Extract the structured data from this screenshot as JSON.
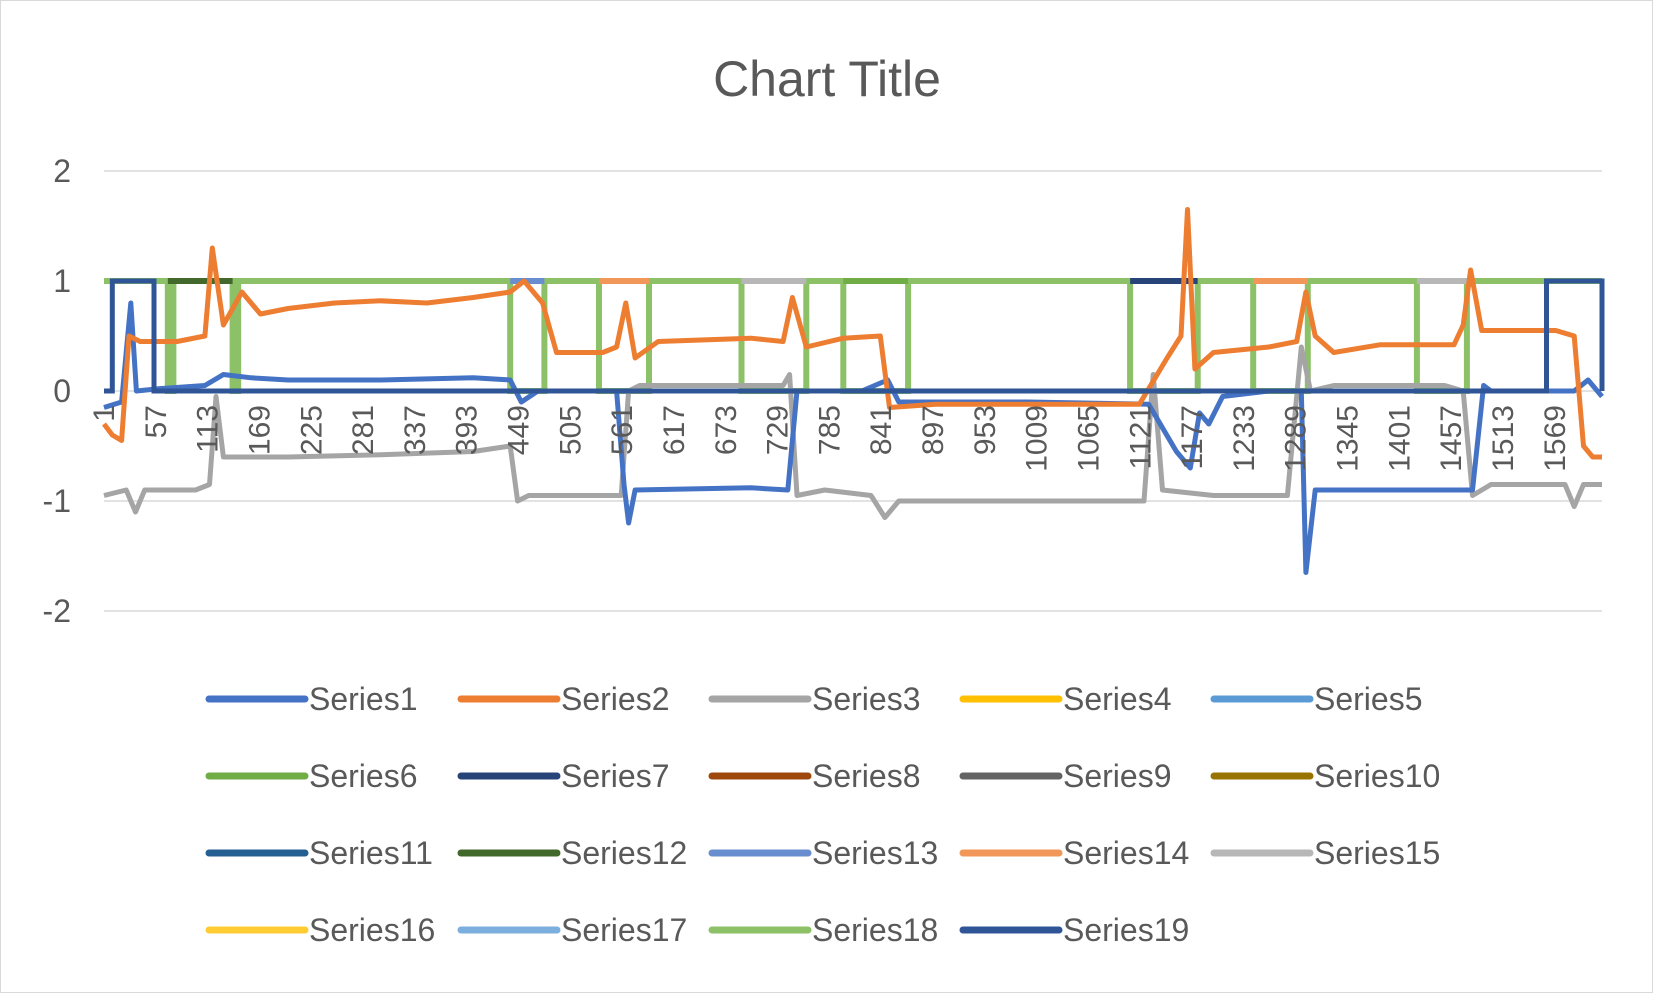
{
  "chart_data": {
    "type": "line",
    "title": "Chart Title",
    "ylim": [
      -2,
      2
    ],
    "yticks": [
      "2",
      "1",
      "0",
      "-1",
      "-2"
    ],
    "x_range": [
      1,
      1620
    ],
    "xticks": [
      "1",
      "57",
      "113",
      "169",
      "225",
      "281",
      "337",
      "393",
      "449",
      "505",
      "561",
      "617",
      "673",
      "729",
      "785",
      "841",
      "897",
      "953",
      "1009",
      "1065",
      "1121",
      "1177",
      "1233",
      "1289",
      "1345",
      "1401",
      "1457",
      "1513",
      "1569"
    ],
    "grid": "horizontal",
    "legend_position": "bottom",
    "segments": {
      "series1": [
        {
          "x": 1,
          "y": -0.15
        },
        {
          "x": 20,
          "y": -0.1
        },
        {
          "x": 30,
          "y": 0.8
        },
        {
          "x": 36,
          "y": 0.0
        },
        {
          "x": 60,
          "y": 0.02
        },
        {
          "x": 110,
          "y": 0.05
        },
        {
          "x": 130,
          "y": 0.15
        },
        {
          "x": 160,
          "y": 0.12
        },
        {
          "x": 200,
          "y": 0.1
        },
        {
          "x": 300,
          "y": 0.1
        },
        {
          "x": 400,
          "y": 0.12
        },
        {
          "x": 440,
          "y": 0.1
        },
        {
          "x": 452,
          "y": -0.1
        },
        {
          "x": 470,
          "y": 0.0
        },
        {
          "x": 555,
          "y": 0.0
        },
        {
          "x": 563,
          "y": -0.85
        },
        {
          "x": 568,
          "y": -1.2
        },
        {
          "x": 575,
          "y": -0.9
        },
        {
          "x": 700,
          "y": -0.88
        },
        {
          "x": 740,
          "y": -0.9
        },
        {
          "x": 750,
          "y": 0.0
        },
        {
          "x": 820,
          "y": 0.0
        },
        {
          "x": 848,
          "y": 0.1
        },
        {
          "x": 860,
          "y": -0.1
        },
        {
          "x": 900,
          "y": -0.1
        },
        {
          "x": 1000,
          "y": -0.1
        },
        {
          "x": 1130,
          "y": -0.12
        },
        {
          "x": 1160,
          "y": -0.55
        },
        {
          "x": 1175,
          "y": -0.7
        },
        {
          "x": 1185,
          "y": -0.2
        },
        {
          "x": 1195,
          "y": -0.3
        },
        {
          "x": 1210,
          "y": -0.05
        },
        {
          "x": 1260,
          "y": 0.0
        },
        {
          "x": 1295,
          "y": 0.0
        },
        {
          "x": 1300,
          "y": -1.65
        },
        {
          "x": 1310,
          "y": -0.9
        },
        {
          "x": 1400,
          "y": -0.9
        },
        {
          "x": 1480,
          "y": -0.9
        },
        {
          "x": 1492,
          "y": 0.05
        },
        {
          "x": 1500,
          "y": 0.0
        },
        {
          "x": 1590,
          "y": 0.0
        },
        {
          "x": 1605,
          "y": 0.1
        },
        {
          "x": 1620,
          "y": -0.05
        }
      ],
      "series2": [
        {
          "x": 1,
          "y": -0.3
        },
        {
          "x": 10,
          "y": -0.4
        },
        {
          "x": 20,
          "y": -0.45
        },
        {
          "x": 28,
          "y": 0.5
        },
        {
          "x": 40,
          "y": 0.45
        },
        {
          "x": 80,
          "y": 0.45
        },
        {
          "x": 110,
          "y": 0.5
        },
        {
          "x": 118,
          "y": 1.3
        },
        {
          "x": 130,
          "y": 0.6
        },
        {
          "x": 150,
          "y": 0.9
        },
        {
          "x": 170,
          "y": 0.7
        },
        {
          "x": 200,
          "y": 0.75
        },
        {
          "x": 250,
          "y": 0.8
        },
        {
          "x": 300,
          "y": 0.82
        },
        {
          "x": 350,
          "y": 0.8
        },
        {
          "x": 400,
          "y": 0.85
        },
        {
          "x": 440,
          "y": 0.9
        },
        {
          "x": 455,
          "y": 1.0
        },
        {
          "x": 475,
          "y": 0.8
        },
        {
          "x": 490,
          "y": 0.35
        },
        {
          "x": 540,
          "y": 0.35
        },
        {
          "x": 555,
          "y": 0.4
        },
        {
          "x": 565,
          "y": 0.8
        },
        {
          "x": 575,
          "y": 0.3
        },
        {
          "x": 600,
          "y": 0.45
        },
        {
          "x": 700,
          "y": 0.48
        },
        {
          "x": 735,
          "y": 0.45
        },
        {
          "x": 745,
          "y": 0.85
        },
        {
          "x": 760,
          "y": 0.4
        },
        {
          "x": 800,
          "y": 0.48
        },
        {
          "x": 840,
          "y": 0.5
        },
        {
          "x": 850,
          "y": -0.15
        },
        {
          "x": 900,
          "y": -0.12
        },
        {
          "x": 1000,
          "y": -0.12
        },
        {
          "x": 1120,
          "y": -0.12
        },
        {
          "x": 1150,
          "y": 0.3
        },
        {
          "x": 1165,
          "y": 0.5
        },
        {
          "x": 1172,
          "y": 1.65
        },
        {
          "x": 1180,
          "y": 0.2
        },
        {
          "x": 1200,
          "y": 0.35
        },
        {
          "x": 1260,
          "y": 0.4
        },
        {
          "x": 1290,
          "y": 0.45
        },
        {
          "x": 1300,
          "y": 0.9
        },
        {
          "x": 1310,
          "y": 0.5
        },
        {
          "x": 1330,
          "y": 0.35
        },
        {
          "x": 1380,
          "y": 0.42
        },
        {
          "x": 1460,
          "y": 0.42
        },
        {
          "x": 1470,
          "y": 0.6
        },
        {
          "x": 1478,
          "y": 1.1
        },
        {
          "x": 1490,
          "y": 0.55
        },
        {
          "x": 1520,
          "y": 0.55
        },
        {
          "x": 1570,
          "y": 0.55
        },
        {
          "x": 1590,
          "y": 0.5
        },
        {
          "x": 1600,
          "y": -0.5
        },
        {
          "x": 1610,
          "y": -0.6
        },
        {
          "x": 1620,
          "y": -0.6
        }
      ],
      "series3": [
        {
          "x": 1,
          "y": -0.95
        },
        {
          "x": 25,
          "y": -0.9
        },
        {
          "x": 35,
          "y": -1.1
        },
        {
          "x": 45,
          "y": -0.9
        },
        {
          "x": 100,
          "y": -0.9
        },
        {
          "x": 115,
          "y": -0.85
        },
        {
          "x": 122,
          "y": -0.05
        },
        {
          "x": 130,
          "y": -0.6
        },
        {
          "x": 200,
          "y": -0.6
        },
        {
          "x": 300,
          "y": -0.58
        },
        {
          "x": 400,
          "y": -0.55
        },
        {
          "x": 440,
          "y": -0.5
        },
        {
          "x": 448,
          "y": -1.0
        },
        {
          "x": 460,
          "y": -0.95
        },
        {
          "x": 560,
          "y": -0.95
        },
        {
          "x": 568,
          "y": 0.0
        },
        {
          "x": 580,
          "y": 0.05
        },
        {
          "x": 700,
          "y": 0.05
        },
        {
          "x": 735,
          "y": 0.05
        },
        {
          "x": 742,
          "y": 0.15
        },
        {
          "x": 750,
          "y": -0.95
        },
        {
          "x": 780,
          "y": -0.9
        },
        {
          "x": 830,
          "y": -0.95
        },
        {
          "x": 845,
          "y": -1.15
        },
        {
          "x": 860,
          "y": -1.0
        },
        {
          "x": 950,
          "y": -1.0
        },
        {
          "x": 1050,
          "y": -1.0
        },
        {
          "x": 1125,
          "y": -1.0
        },
        {
          "x": 1135,
          "y": 0.15
        },
        {
          "x": 1145,
          "y": -0.9
        },
        {
          "x": 1200,
          "y": -0.95
        },
        {
          "x": 1280,
          "y": -0.95
        },
        {
          "x": 1295,
          "y": 0.4
        },
        {
          "x": 1305,
          "y": 0.0
        },
        {
          "x": 1330,
          "y": 0.05
        },
        {
          "x": 1450,
          "y": 0.05
        },
        {
          "x": 1470,
          "y": 0.0
        },
        {
          "x": 1480,
          "y": -0.95
        },
        {
          "x": 1500,
          "y": -0.85
        },
        {
          "x": 1580,
          "y": -0.85
        },
        {
          "x": 1590,
          "y": -1.05
        },
        {
          "x": 1600,
          "y": -0.85
        },
        {
          "x": 1620,
          "y": -0.85
        }
      ],
      "series18_steps": [
        {
          "x": 1,
          "y": 1
        },
        {
          "x": 70,
          "y": 1
        },
        {
          "x": 70,
          "y": 0
        },
        {
          "x": 76,
          "y": 0
        },
        {
          "x": 76,
          "y": 1
        },
        {
          "x": 140,
          "y": 1
        },
        {
          "x": 140,
          "y": 0
        },
        {
          "x": 146,
          "y": 0
        },
        {
          "x": 146,
          "y": 1
        },
        {
          "x": 440,
          "y": 1
        },
        {
          "x": 440,
          "y": 0
        },
        {
          "x": 477,
          "y": 0
        },
        {
          "x": 477,
          "y": 1
        },
        {
          "x": 536,
          "y": 1
        },
        {
          "x": 536,
          "y": 0
        },
        {
          "x": 590,
          "y": 0
        },
        {
          "x": 590,
          "y": 1
        },
        {
          "x": 690,
          "y": 1
        },
        {
          "x": 690,
          "y": 0
        },
        {
          "x": 760,
          "y": 0
        },
        {
          "x": 760,
          "y": 1
        },
        {
          "x": 800,
          "y": 1
        },
        {
          "x": 800,
          "y": 0
        },
        {
          "x": 870,
          "y": 0
        },
        {
          "x": 870,
          "y": 1
        },
        {
          "x": 1110,
          "y": 1
        },
        {
          "x": 1110,
          "y": 0
        },
        {
          "x": 1183,
          "y": 0
        },
        {
          "x": 1183,
          "y": 1
        },
        {
          "x": 1243,
          "y": 1
        },
        {
          "x": 1243,
          "y": 0
        },
        {
          "x": 1302,
          "y": 0
        },
        {
          "x": 1302,
          "y": 1
        },
        {
          "x": 1420,
          "y": 1
        },
        {
          "x": 1420,
          "y": 0
        },
        {
          "x": 1474,
          "y": 0
        },
        {
          "x": 1474,
          "y": 1
        },
        {
          "x": 1620,
          "y": 1
        }
      ],
      "series19_steps": [
        {
          "x": 1,
          "y": 0
        },
        {
          "x": 10,
          "y": 0
        },
        {
          "x": 10,
          "y": 1
        },
        {
          "x": 55,
          "y": 1
        },
        {
          "x": 55,
          "y": 0
        },
        {
          "x": 1560,
          "y": 0
        },
        {
          "x": 1560,
          "y": 1
        },
        {
          "x": 1620,
          "y": 1
        },
        {
          "x": 1620,
          "y": 0
        }
      ],
      "accents": [
        {
          "series": "Series12",
          "x1": 70,
          "x2": 140
        },
        {
          "series": "Series13",
          "x1": 440,
          "x2": 477
        },
        {
          "series": "Series14",
          "x1": 536,
          "x2": 590
        },
        {
          "series": "Series15",
          "x1": 690,
          "x2": 760
        },
        {
          "series": "Series6",
          "x1": 800,
          "x2": 870
        },
        {
          "series": "Series7",
          "x1": 1110,
          "x2": 1183
        },
        {
          "series": "Series14",
          "x1": 1243,
          "x2": 1302
        },
        {
          "series": "Series15",
          "x1": 1420,
          "x2": 1474
        }
      ]
    },
    "series": [
      {
        "name": "Series1",
        "color": "#4472C4"
      },
      {
        "name": "Series2",
        "color": "#ED7D31"
      },
      {
        "name": "Series3",
        "color": "#A5A5A5"
      },
      {
        "name": "Series4",
        "color": "#FFC000"
      },
      {
        "name": "Series5",
        "color": "#5B9BD5"
      },
      {
        "name": "Series6",
        "color": "#70AD47"
      },
      {
        "name": "Series7",
        "color": "#264478"
      },
      {
        "name": "Series8",
        "color": "#9E480E"
      },
      {
        "name": "Series9",
        "color": "#636363"
      },
      {
        "name": "Series10",
        "color": "#997300"
      },
      {
        "name": "Series11",
        "color": "#255E91"
      },
      {
        "name": "Series12",
        "color": "#43682B"
      },
      {
        "name": "Series13",
        "color": "#698ED0"
      },
      {
        "name": "Series14",
        "color": "#F1975A"
      },
      {
        "name": "Series15",
        "color": "#B7B7B7"
      },
      {
        "name": "Series16",
        "color": "#FFCD33"
      },
      {
        "name": "Series17",
        "color": "#7CAFDD"
      },
      {
        "name": "Series18",
        "color": "#8CC168"
      },
      {
        "name": "Series19",
        "color": "#2F5597"
      }
    ],
    "colors": {
      "grid": "#d9d9d9",
      "text": "#595959",
      "frame": "#d9d9d9"
    }
  }
}
